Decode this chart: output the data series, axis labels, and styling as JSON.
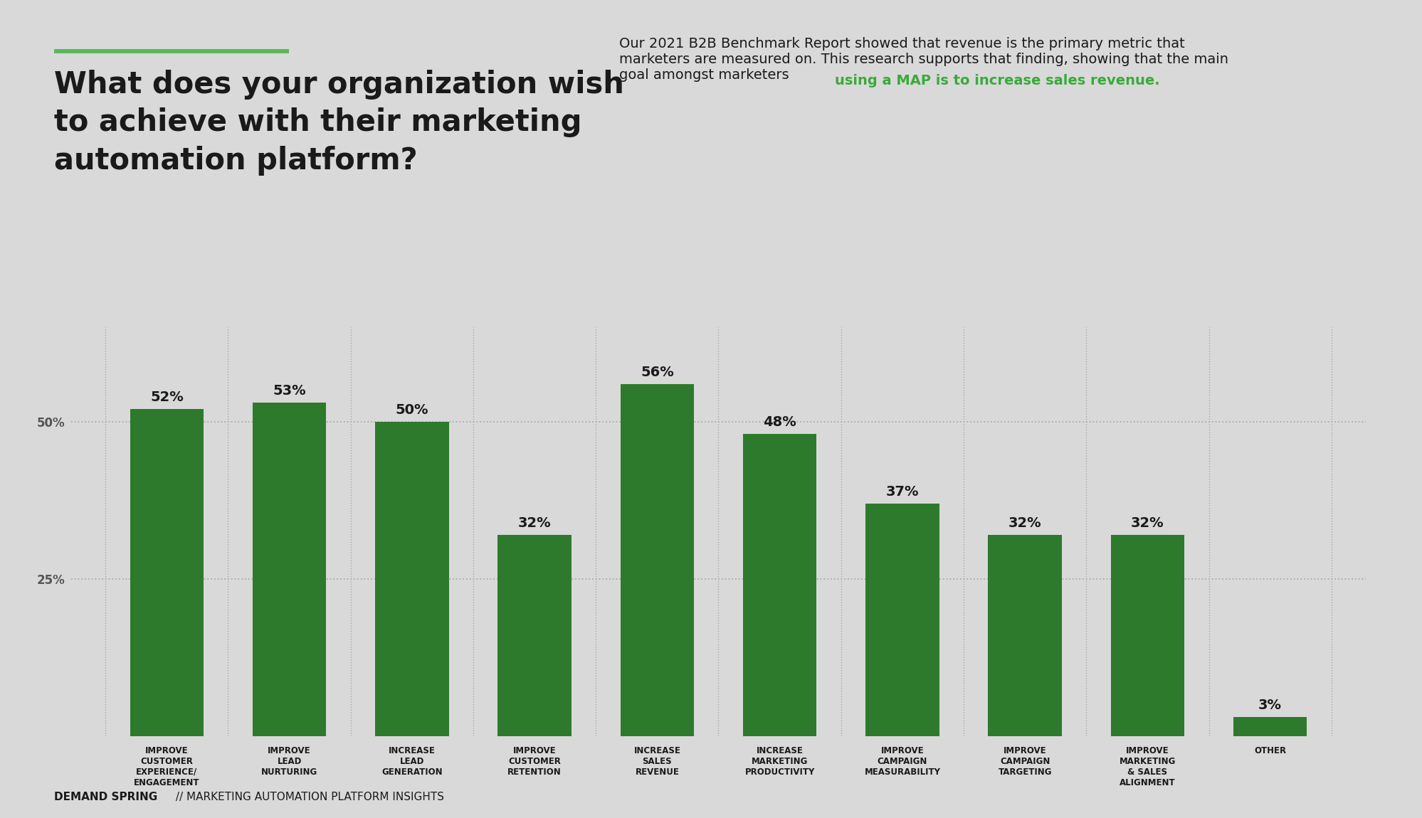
{
  "categories": [
    "IMPROVE\nCUSTOMER\nEXPERIENCE/\nENGAGEMENT",
    "IMPROVE\nLEAD\nNURTURING",
    "INCREASE\nLEAD\nGENERATION",
    "IMPROVE\nCUSTOMER\nRETENTION",
    "INCREASE\nSALES\nREVENUE",
    "INCREASE\nMARKETING\nPRODUCTIVITY",
    "IMPROVE\nCAMPAIGN\nMEASURABILITY",
    "IMPROVE\nCAMPAIGN\nTARGETING",
    "IMPROVE\nMARKETING\n& SALES\nALIGNMENT",
    "OTHER"
  ],
  "values": [
    52,
    53,
    50,
    32,
    56,
    48,
    37,
    32,
    32,
    3
  ],
  "bar_color_main": "#2d7a2d",
  "background_color": "#d9d9d9",
  "title_line1": "What does your organization wish",
  "title_line2": "to achieve with their marketing",
  "title_line3": "automation platform?",
  "title_color": "#1a1a1a",
  "title_fontsize": 30,
  "green_line_color": "#5cb85c",
  "subtitle_text_part1": "Our 2021 B2B Benchmark Report showed that revenue is the primary metric that\nmarketers are measured on. This research supports that finding, showing that the main\ngoal amongst marketers ",
  "subtitle_highlight": "using a MAP is to increase sales revenue.",
  "subtitle_color": "#1a1a1a",
  "subtitle_highlight_color": "#3aaa3a",
  "subtitle_fontsize": 14,
  "grid_color": "#aaaaaa",
  "footer_bold": "DEMAND SPRING",
  "footer_regular": " // MARKETING AUTOMATION PLATFORM INSIGHTS",
  "footer_color": "#1a1a1a",
  "footer_fontsize": 11,
  "value_label_fontsize": 14,
  "bar_label_fontsize": 8.5
}
